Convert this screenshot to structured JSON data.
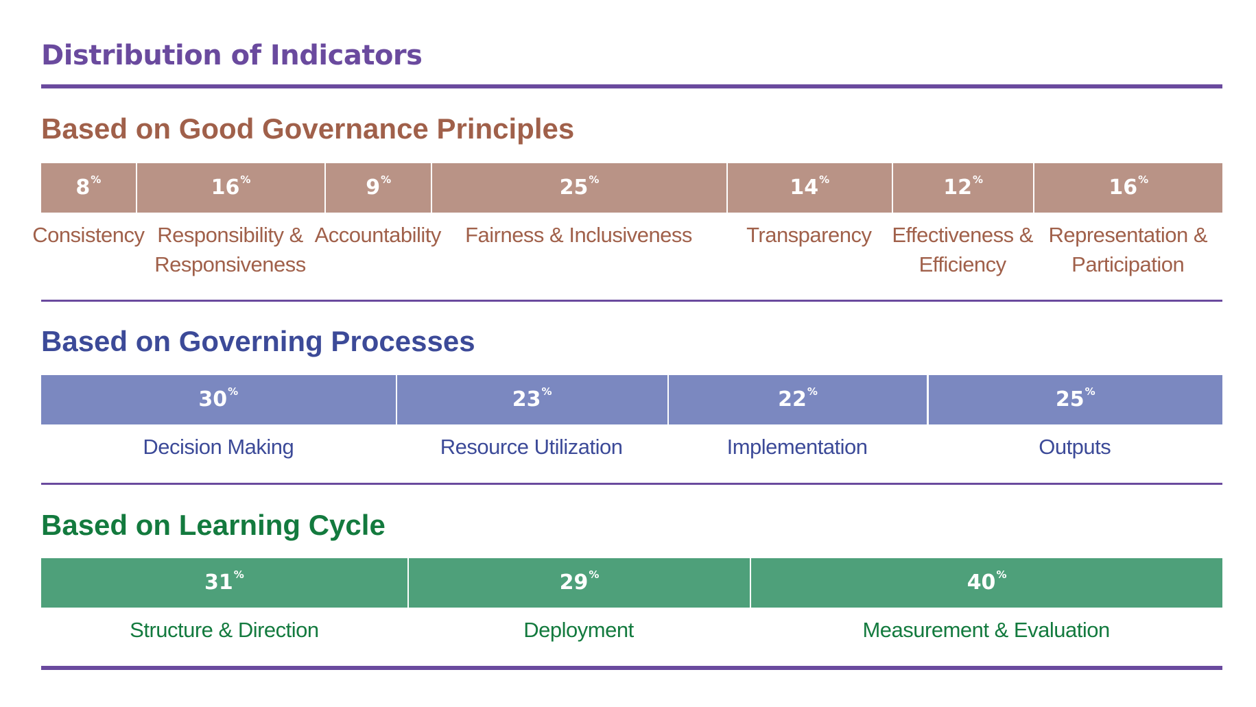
{
  "title": "Distribution of Indicators",
  "chart_data": [
    {
      "type": "bar",
      "orientation": "horizontal-stacked",
      "title": "Based on Good Governance Principles",
      "unit": "%",
      "color": "#b99386",
      "label_color": "#a0604a",
      "categories": [
        "Consistency",
        "Responsibility & Responsiveness",
        "Accountability",
        "Fairness & Inclusiveness",
        "Transparency",
        "Effectiveness & Efficiency",
        "Representation & Participation"
      ],
      "values": [
        8,
        16,
        9,
        25,
        14,
        12,
        16
      ]
    },
    {
      "type": "bar",
      "orientation": "horizontal-stacked",
      "title": "Based on Governing Processes",
      "unit": "%",
      "color": "#7b88c0",
      "label_color": "#3c4a98",
      "categories": [
        "Decision Making",
        "Resource Utilization",
        "Implementation",
        "Outputs"
      ],
      "values": [
        30,
        23,
        22,
        25
      ]
    },
    {
      "type": "bar",
      "orientation": "horizontal-stacked",
      "title": "Based on Learning Cycle",
      "unit": "%",
      "color": "#4ea07a",
      "label_color": "#137a3e",
      "categories": [
        "Structure & Direction",
        "Deployment",
        "Measurement & Evaluation"
      ],
      "values": [
        31,
        29,
        40
      ]
    }
  ]
}
